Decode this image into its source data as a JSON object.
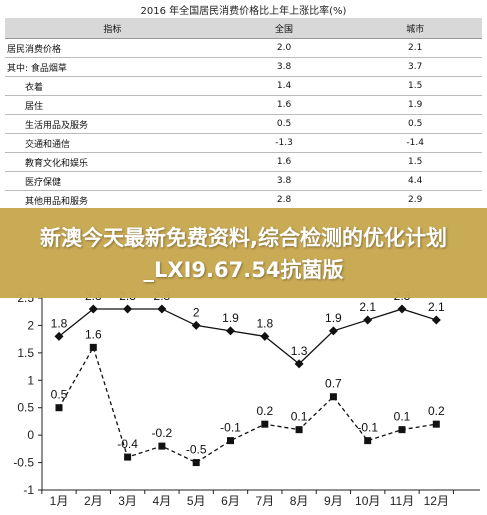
{
  "table": {
    "title": "2016 年全国居民消费价格比上年上涨比率(%)",
    "headers": [
      "指标",
      "全国",
      "城市"
    ],
    "rows": [
      {
        "label": "居民消费价格",
        "national": "2.0",
        "city": "2.1",
        "indent": 0
      },
      {
        "label": "其中: 食品烟草",
        "national": "3.8",
        "city": "3.7",
        "indent": 0
      },
      {
        "label": "衣着",
        "national": "1.4",
        "city": "1.5",
        "indent": 1
      },
      {
        "label": "居住",
        "national": "1.6",
        "city": "1.9",
        "indent": 1
      },
      {
        "label": "生活用品及服务",
        "national": "0.5",
        "city": "0.5",
        "indent": 1
      },
      {
        "label": "交通和通信",
        "national": "-1.3",
        "city": "-1.4",
        "indent": 1
      },
      {
        "label": "教育文化和娱乐",
        "national": "1.6",
        "city": "1.5",
        "indent": 1
      },
      {
        "label": "医疗保健",
        "national": "3.8",
        "city": "4.4",
        "indent": 1
      },
      {
        "label": "其他用品和服务",
        "national": "2.8",
        "city": "2.9",
        "indent": 1
      }
    ]
  },
  "banner": {
    "text": "新澳今天最新免费资料,综合检测的优化计划_LXI9.67.54抗菌版"
  },
  "chart_data": {
    "type": "line",
    "categories": [
      "1月",
      "2月",
      "3月",
      "4月",
      "5月",
      "6月",
      "7月",
      "8月",
      "9月",
      "10月",
      "11月",
      "12月"
    ],
    "series": [
      {
        "values": [
          1.8,
          2.3,
          2.3,
          2.3,
          2.0,
          1.9,
          1.8,
          1.3,
          1.9,
          2.1,
          2.3,
          2.1
        ],
        "labels": [
          "1.8",
          "2.3",
          "2.3",
          "2.3",
          "2",
          "1.9",
          "1.8",
          "1.3",
          "1.9",
          "2.1",
          "2.3",
          "2.1"
        ],
        "marker": "diamond",
        "color": "#111111"
      },
      {
        "values": [
          0.5,
          1.6,
          -0.4,
          -0.2,
          -0.5,
          -0.1,
          0.2,
          0.1,
          0.7,
          -0.1,
          0.1,
          0.2
        ],
        "labels": [
          "0.5",
          "1.6",
          "-0.4",
          "-0.2",
          "-0.5",
          "-0.1",
          "0.2",
          "0.1",
          "0.7",
          "-0.1",
          "0.1",
          "0.2"
        ],
        "marker": "square",
        "color": "#111111",
        "dashed": true
      }
    ],
    "y_ticks": [
      "-1",
      "-0.5",
      "0",
      "0.5",
      "1",
      "1.5",
      "2",
      "2.5"
    ],
    "ylim": [
      -1,
      2.5
    ],
    "grid": false
  }
}
